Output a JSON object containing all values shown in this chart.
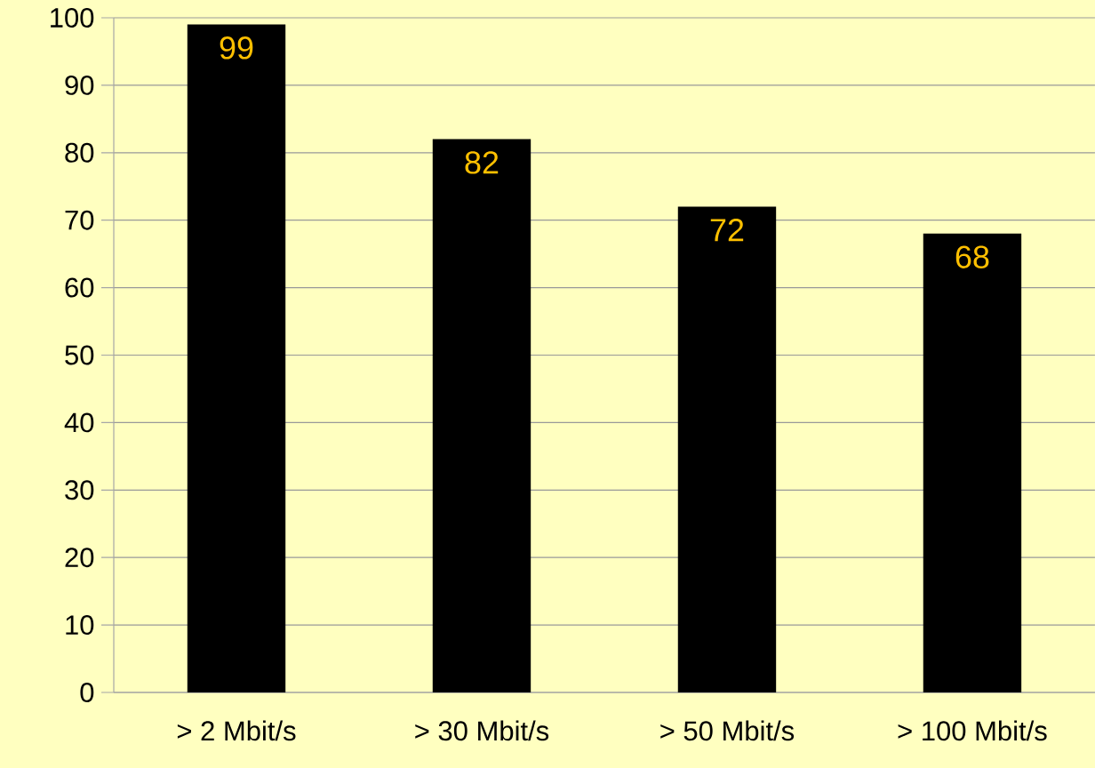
{
  "chart_data": {
    "type": "bar",
    "categories": [
      "> 2 Mbit/s",
      "> 30 Mbit/s",
      "> 50 Mbit/s",
      "> 100 Mbit/s"
    ],
    "values": [
      99,
      82,
      72,
      68
    ],
    "color": "#000000",
    "ylim": [
      0,
      100
    ],
    "yticks": [
      0,
      10,
      20,
      30,
      40,
      50,
      60,
      70,
      80,
      90,
      100
    ],
    "grid": "y",
    "data_labels": true
  }
}
